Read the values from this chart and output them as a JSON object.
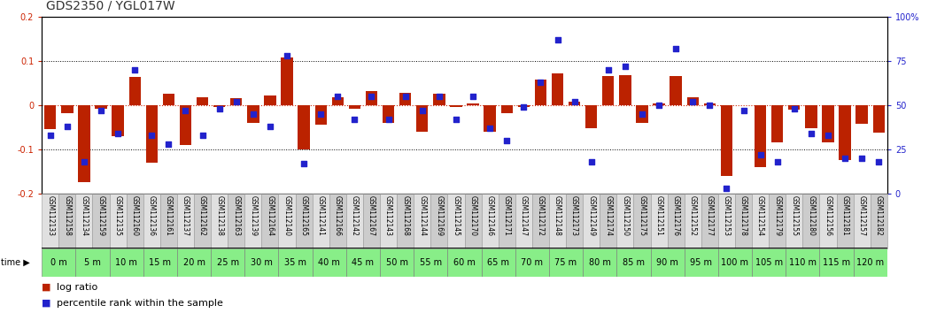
{
  "title": "GDS2350 / YGL017W",
  "samples": [
    "GSM112133",
    "GSM112158",
    "GSM112134",
    "GSM112159",
    "GSM112135",
    "GSM112160",
    "GSM112136",
    "GSM112161",
    "GSM112137",
    "GSM112162",
    "GSM112138",
    "GSM112163",
    "GSM112139",
    "GSM112164",
    "GSM112140",
    "GSM112165",
    "GSM112141",
    "GSM112166",
    "GSM112142",
    "GSM112167",
    "GSM112143",
    "GSM112168",
    "GSM112144",
    "GSM112169",
    "GSM112145",
    "GSM112170",
    "GSM112146",
    "GSM112171",
    "GSM112147",
    "GSM112172",
    "GSM112148",
    "GSM112173",
    "GSM112149",
    "GSM112174",
    "GSM112150",
    "GSM112175",
    "GSM112151",
    "GSM112176",
    "GSM112152",
    "GSM112177",
    "GSM112153",
    "GSM112178",
    "GSM112154",
    "GSM112179",
    "GSM112155",
    "GSM112180",
    "GSM112156",
    "GSM112181",
    "GSM112157",
    "GSM112182"
  ],
  "time_labels": [
    "0 m",
    "5 m",
    "10 m",
    "15 m",
    "20 m",
    "25 m",
    "30 m",
    "35 m",
    "40 m",
    "45 m",
    "50 m",
    "55 m",
    "60 m",
    "65 m",
    "70 m",
    "75 m",
    "80 m",
    "85 m",
    "90 m",
    "95 m",
    "100 m",
    "105 m",
    "110 m",
    "115 m",
    "120 m"
  ],
  "log_ratio": [
    -0.055,
    -0.018,
    -0.175,
    -0.008,
    -0.07,
    0.063,
    -0.13,
    0.025,
    -0.09,
    0.018,
    -0.005,
    0.015,
    -0.04,
    0.022,
    0.108,
    -0.1,
    -0.045,
    0.018,
    -0.008,
    0.032,
    -0.04,
    0.028,
    -0.06,
    0.025,
    -0.004,
    0.004,
    -0.06,
    -0.018,
    -0.004,
    0.058,
    0.072,
    0.008,
    -0.052,
    0.065,
    0.068,
    -0.04,
    0.004,
    0.065,
    0.018,
    0.004,
    -0.16,
    0.0,
    -0.14,
    -0.085,
    -0.01,
    -0.052,
    -0.085,
    -0.125,
    -0.042,
    -0.062
  ],
  "percentile": [
    33,
    38,
    18,
    47,
    34,
    70,
    33,
    28,
    47,
    33,
    48,
    52,
    45,
    38,
    78,
    17,
    45,
    55,
    42,
    55,
    42,
    55,
    47,
    55,
    42,
    55,
    37,
    30,
    49,
    63,
    87,
    52,
    18,
    70,
    72,
    45,
    50,
    82,
    52,
    50,
    3,
    47,
    22,
    18,
    48,
    34,
    33,
    20,
    20,
    18
  ],
  "bar_color": "#bb2200",
  "dot_color": "#2222cc",
  "bg_color": "#ffffff",
  "dotted_line_color": "#000000",
  "zero_line_color": "#cc2200",
  "ylim": [
    -0.2,
    0.2
  ],
  "y2lim": [
    0,
    100
  ],
  "yticks": [
    -0.2,
    -0.1,
    0.0,
    0.1,
    0.2
  ],
  "y2ticks": [
    0,
    25,
    50,
    75,
    100
  ],
  "title_fontsize": 10,
  "tick_fontsize": 7,
  "label_fontsize": 5.5,
  "time_fontsize": 7,
  "legend_fontsize": 8,
  "time_bg_color": "#88ee88",
  "sample_bg_color_even": "#e0e0e0",
  "sample_bg_color_odd": "#cccccc"
}
